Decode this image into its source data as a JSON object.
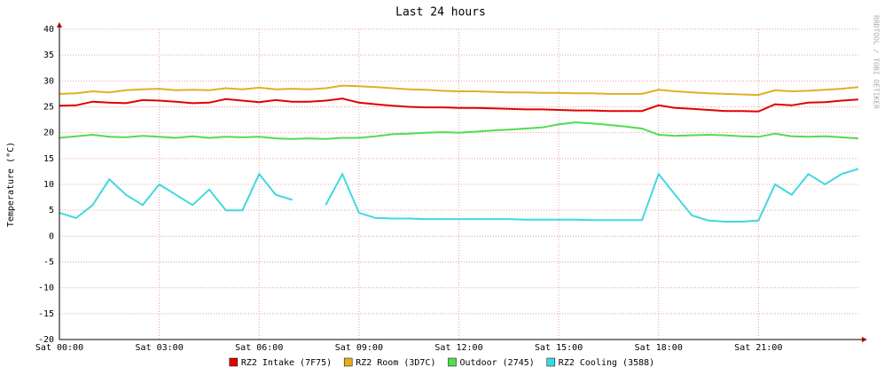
{
  "chart_data": {
    "type": "line",
    "title": "Last 24 hours",
    "y_label": "Temperature (°C)",
    "watermark": "RRDTOOL / TOBI OETIKER",
    "x": [
      0,
      0.5,
      1,
      1.5,
      2,
      2.5,
      3,
      3.5,
      4,
      4.5,
      5,
      5.5,
      6,
      6.5,
      7,
      7.5,
      8,
      8.5,
      9,
      9.5,
      10,
      10.5,
      11,
      11.5,
      12,
      12.5,
      13,
      13.5,
      14,
      14.5,
      15,
      15.5,
      16,
      16.5,
      17,
      17.5,
      18,
      18.5,
      19,
      19.5,
      20,
      20.5,
      21,
      21.5,
      22,
      22.5,
      23,
      23.5,
      24
    ],
    "xlim": [
      0,
      24
    ],
    "xticks": [
      {
        "value": 0,
        "label": "Sat 00:00"
      },
      {
        "value": 3,
        "label": "Sat 03:00"
      },
      {
        "value": 6,
        "label": "Sat 06:00"
      },
      {
        "value": 9,
        "label": "Sat 09:00"
      },
      {
        "value": 12,
        "label": "Sat 12:00"
      },
      {
        "value": 15,
        "label": "Sat 15:00"
      },
      {
        "value": 18,
        "label": "Sat 18:00"
      },
      {
        "value": 21,
        "label": "Sat 21:00"
      }
    ],
    "ylim": [
      -20,
      40
    ],
    "yticks": [
      -20,
      -15,
      -10,
      -5,
      0,
      5,
      10,
      15,
      20,
      25,
      30,
      35,
      40
    ],
    "grid": true,
    "series": [
      {
        "name": "RZ2 Intake (7F75)",
        "color": "#e00000",
        "values": [
          25.2,
          25.3,
          26,
          25.8,
          25.7,
          26.3,
          26.2,
          26,
          25.7,
          25.8,
          26.5,
          26.2,
          25.9,
          26.3,
          26,
          26,
          26.2,
          26.6,
          25.8,
          25.5,
          25.2,
          25,
          24.9,
          24.9,
          24.8,
          24.8,
          24.7,
          24.6,
          24.5,
          24.5,
          24.4,
          24.3,
          24.3,
          24.2,
          24.2,
          24.2,
          25.3,
          24.8,
          24.6,
          24.4,
          24.2,
          24.2,
          24.1,
          25.5,
          25.3,
          25.8,
          25.9,
          26.2,
          26.4
        ]
      },
      {
        "name": "RZ2 Room (3D7C)",
        "color": "#e0b020",
        "values": [
          27.5,
          27.6,
          28,
          27.8,
          28.2,
          28.4,
          28.5,
          28.2,
          28.3,
          28.2,
          28.6,
          28.4,
          28.7,
          28.4,
          28.5,
          28.4,
          28.6,
          29.1,
          29,
          28.8,
          28.6,
          28.4,
          28.3,
          28.1,
          28,
          28,
          27.9,
          27.8,
          27.8,
          27.7,
          27.7,
          27.6,
          27.6,
          27.5,
          27.5,
          27.5,
          28.3,
          28,
          27.8,
          27.6,
          27.5,
          27.4,
          27.3,
          28.2,
          28,
          28.1,
          28.3,
          28.5,
          28.8
        ]
      },
      {
        "name": "Outdoor (2745)",
        "color": "#50dd50",
        "values": [
          19,
          19.3,
          19.6,
          19.2,
          19.1,
          19.4,
          19.2,
          19,
          19.3,
          19,
          19.2,
          19.1,
          19.2,
          18.9,
          18.8,
          18.9,
          18.8,
          19,
          19,
          19.3,
          19.7,
          19.8,
          20,
          20.1,
          20,
          20.2,
          20.4,
          20.6,
          20.8,
          21,
          21.6,
          22,
          21.8,
          21.5,
          21.2,
          20.8,
          19.6,
          19.4,
          19.5,
          19.6,
          19.5,
          19.3,
          19.2,
          19.8,
          19.3,
          19.2,
          19.3,
          19.1,
          18.9
        ]
      },
      {
        "name": "RZ2 Cooling (3588)",
        "color": "#40d8e0",
        "values": [
          4.5,
          3.5,
          6,
          11,
          8,
          6,
          10,
          8,
          6,
          9,
          5,
          5,
          12,
          8,
          7,
          null,
          6,
          12,
          4.5,
          3.5,
          3.4,
          3.4,
          3.3,
          3.3,
          3.3,
          3.3,
          3.3,
          3.3,
          3.2,
          3.2,
          3.2,
          3.2,
          3.1,
          3.1,
          3.1,
          3.1,
          12,
          8,
          4,
          3,
          2.8,
          2.8,
          3,
          10,
          8,
          12,
          10,
          12,
          13
        ]
      }
    ]
  }
}
